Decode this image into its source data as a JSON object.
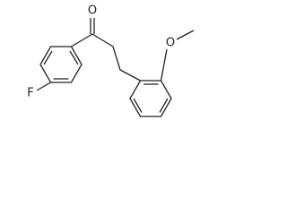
{
  "labels": {
    "carbonyl_oxygen": "O",
    "fluorine": "F",
    "methoxy_oxygen": "O"
  }
}
